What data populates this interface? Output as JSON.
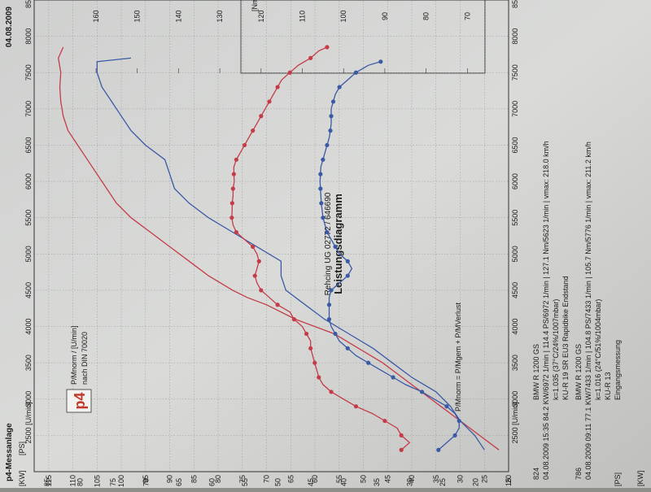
{
  "header": {
    "company": "p4-Messanlage",
    "date": "04.08.2009",
    "address": "Rehcing UG 02772 / 646690",
    "title": "Leistungsdiagramm"
  },
  "legend": {
    "logo_text": "p4",
    "line1": "P/Mnorm / [U/min]",
    "line2": "nach DIN 70020"
  },
  "formula": "P/Mnorm = P/Mgem + P/MVerlust",
  "unit_labels": {
    "kw": "[KW]",
    "ps": "[PS]",
    "nm": "[Nm]",
    "rpm": "[U/min]"
  },
  "runs": [
    {
      "id": "824",
      "line1": "04.08.2009  15:35  84.2 KW/6972 1/min  |  114.4 PS/6972 1/min  |  127.1 Nm/5623 1/min  | vmax: 218.0 km/h",
      "line2": "k=1.035 (37°C/24%/1007mbar)",
      "vehicle": "BMW R 1200 GS",
      "line3": "KU-R 19 SR EU3 Rapidbike Endstand"
    },
    {
      "id": "786",
      "line1": "04.08.2009  09:11  77.1 KW/7433 1/min  |  104.8 PS/7433 1/min  |  105.7 Nm/5776 1/min  | vmax: 211.2 km/h",
      "line2": "k=1.016 (24°C/51%/1004mbar)",
      "vehicle": "BMW R 1200 GS",
      "line3": "KU-R 13",
      "line4": "Eingangsmessung"
    }
  ],
  "chart_data": {
    "type": "line",
    "title": "Leistungsdiagramm",
    "xlabel": "[U/min]",
    "xlim": [
      2000,
      8500
    ],
    "x_ticks": [
      2500,
      3000,
      3500,
      4000,
      4500,
      5000,
      5500,
      6000,
      6500,
      7000,
      7500,
      8000,
      8500
    ],
    "y_axes": {
      "kw": {
        "label": "[KW]",
        "lim": [
          15,
          87
        ],
        "ticks": [
          15,
          20,
          25,
          30,
          35,
          40,
          45,
          50,
          55,
          60,
          65,
          70,
          75,
          80,
          85
        ]
      },
      "ps": {
        "label": "[PS]",
        "lim": [
          20,
          118
        ],
        "ticks": [
          20,
          25,
          30,
          35,
          40,
          45,
          50,
          55,
          60,
          65,
          70,
          75,
          80,
          85,
          90,
          95,
          100,
          105,
          110,
          115
        ]
      },
      "nm": {
        "label": "[Nm]",
        "lim": [
          60,
          175
        ],
        "ticks": [
          70,
          80,
          90,
          100,
          110,
          120,
          130,
          140,
          150,
          160
        ]
      }
    },
    "grid": true,
    "series": [
      {
        "unit": "ps",
        "color": "#c43c48",
        "x": [
          2300,
          2500,
          2700,
          2900,
          3100,
          3300,
          3500,
          3700,
          3900,
          4100,
          4300,
          4400,
          4500,
          4700,
          4900,
          5100,
          5300,
          5500,
          5700,
          5900,
          6100,
          6300,
          6500,
          6700,
          6900,
          7100,
          7300,
          7500,
          7700,
          7850
        ],
        "values": [
          22,
          26,
          30,
          34,
          38,
          42,
          46,
          51,
          56,
          64,
          70,
          74,
          77,
          82,
          86,
          90,
          94,
          98,
          101,
          103,
          105,
          107,
          109,
          111,
          112,
          112.5,
          112.7,
          112.5,
          113,
          112
        ]
      },
      {
        "unit": "ps",
        "color": "#3a5aa6",
        "x": [
          2300,
          2500,
          2700,
          2900,
          3100,
          3300,
          3500,
          3700,
          3900,
          4100,
          4300,
          4500,
          4700,
          4900,
          5100,
          5300,
          5500,
          5700,
          5900,
          6100,
          6300,
          6500,
          6700,
          6900,
          7100,
          7300,
          7500,
          7650,
          7700
        ],
        "values": [
          25,
          27,
          30,
          32,
          35,
          40,
          44,
          48,
          53,
          58,
          62,
          66,
          67,
          67,
          72,
          77,
          82,
          86,
          89,
          90,
          91,
          95,
          98,
          100,
          102,
          104,
          105,
          105,
          98
        ]
      },
      {
        "unit": "nm",
        "color": "#c43c48",
        "markers": true,
        "x": [
          2300,
          2400,
          2500,
          2600,
          2700,
          2800,
          2900,
          3000,
          3100,
          3200,
          3300,
          3400,
          3500,
          3600,
          3700,
          3800,
          3900,
          4000,
          4100,
          4200,
          4300,
          4400,
          4500,
          4600,
          4700,
          4800,
          4900,
          5000,
          5100,
          5200,
          5300,
          5400,
          5500,
          5600,
          5700,
          5800,
          5900,
          6000,
          6100,
          6200,
          6300,
          6400,
          6500,
          6600,
          6700,
          6800,
          6900,
          7000,
          7100,
          7200,
          7300,
          7400,
          7500,
          7600,
          7700,
          7800,
          7850
        ],
        "values": [
          86,
          84,
          86,
          87,
          90,
          93,
          97,
          100,
          103,
          105,
          106,
          106.5,
          107,
          107.5,
          108,
          108,
          109,
          110,
          112,
          113,
          116,
          118,
          120,
          121,
          121.5,
          121,
          120.5,
          121,
          122,
          124,
          126,
          126.8,
          127.1,
          127,
          127,
          126.8,
          126.8,
          126.5,
          126.6,
          126.6,
          126,
          125,
          124,
          123,
          122,
          121,
          120,
          119,
          118,
          117,
          116,
          115,
          113,
          111,
          108,
          106,
          104
        ]
      },
      {
        "unit": "nm",
        "color": "#3a5aa6",
        "markers": true,
        "x": [
          2300,
          2400,
          2500,
          2600,
          2700,
          2800,
          2900,
          3000,
          3100,
          3200,
          3300,
          3400,
          3500,
          3600,
          3700,
          3800,
          3900,
          4000,
          4100,
          4200,
          4300,
          4400,
          4500,
          4600,
          4700,
          4800,
          4900,
          5000,
          5100,
          5200,
          5300,
          5400,
          5500,
          5600,
          5700,
          5800,
          5900,
          6000,
          6100,
          6200,
          6300,
          6400,
          6500,
          6600,
          6700,
          6800,
          6900,
          7000,
          7100,
          7200,
          7300,
          7400,
          7500,
          7600,
          7650
        ],
        "values": [
          77,
          75,
          73,
          72,
          72,
          73,
          75,
          78,
          81,
          85,
          88,
          91,
          94,
          97,
          99,
          101,
          102,
          103,
          103.5,
          103.5,
          103.5,
          103.5,
          103,
          101,
          99,
          98,
          99,
          101,
          102,
          103,
          104,
          104.5,
          105,
          105.2,
          105.4,
          105.5,
          105.6,
          105.7,
          105.6,
          105.5,
          105,
          104.5,
          104,
          103.5,
          103.2,
          103,
          103,
          103,
          102.5,
          102,
          101,
          99,
          97,
          94,
          91
        ]
      }
    ]
  }
}
